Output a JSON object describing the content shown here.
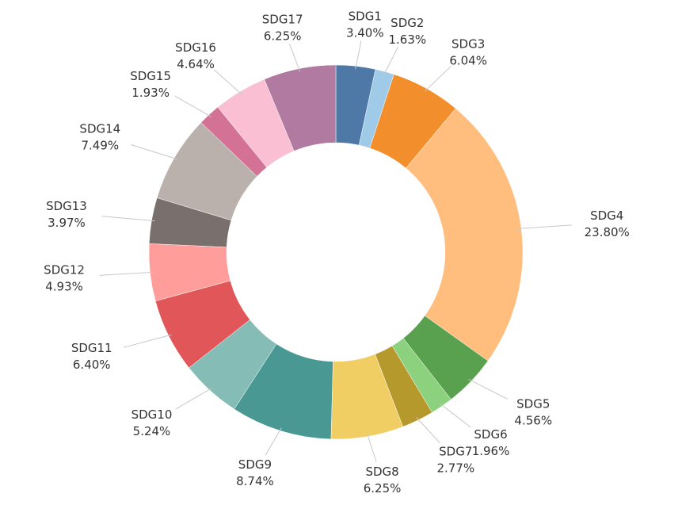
{
  "chart_data": {
    "type": "pie",
    "donut": true,
    "title": "",
    "legend": "none",
    "categories": [
      "SDG1",
      "SDG2",
      "SDG3",
      "SDG4",
      "SDG5",
      "SDG6",
      "SDG7",
      "SDG8",
      "SDG9",
      "SDG10",
      "SDG11",
      "SDG12",
      "SDG13",
      "SDG14",
      "SDG15",
      "SDG16",
      "SDG17"
    ],
    "values": [
      3.4,
      1.63,
      6.04,
      23.8,
      4.56,
      1.96,
      2.77,
      6.25,
      8.74,
      5.24,
      6.4,
      4.93,
      3.97,
      7.49,
      1.93,
      4.64,
      6.25
    ],
    "labels": [
      "3.40%",
      "1.63%",
      "6.04%",
      "23.80%",
      "4.56%",
      "1.96%",
      "2.77%",
      "6.25%",
      "8.74%",
      "5.24%",
      "6.40%",
      "4.93%",
      "3.97%",
      "7.49%",
      "1.93%",
      "4.64%",
      "6.25%"
    ],
    "colors": [
      "#4e79a7",
      "#a0cbe8",
      "#f28e2b",
      "#ffbe7d",
      "#59a14f",
      "#8cd17d",
      "#b6992d",
      "#f1ce63",
      "#499894",
      "#86bcb6",
      "#e15759",
      "#ff9d9a",
      "#79706e",
      "#bab0ac",
      "#d37295",
      "#fabfd2",
      "#b07aa1"
    ]
  }
}
